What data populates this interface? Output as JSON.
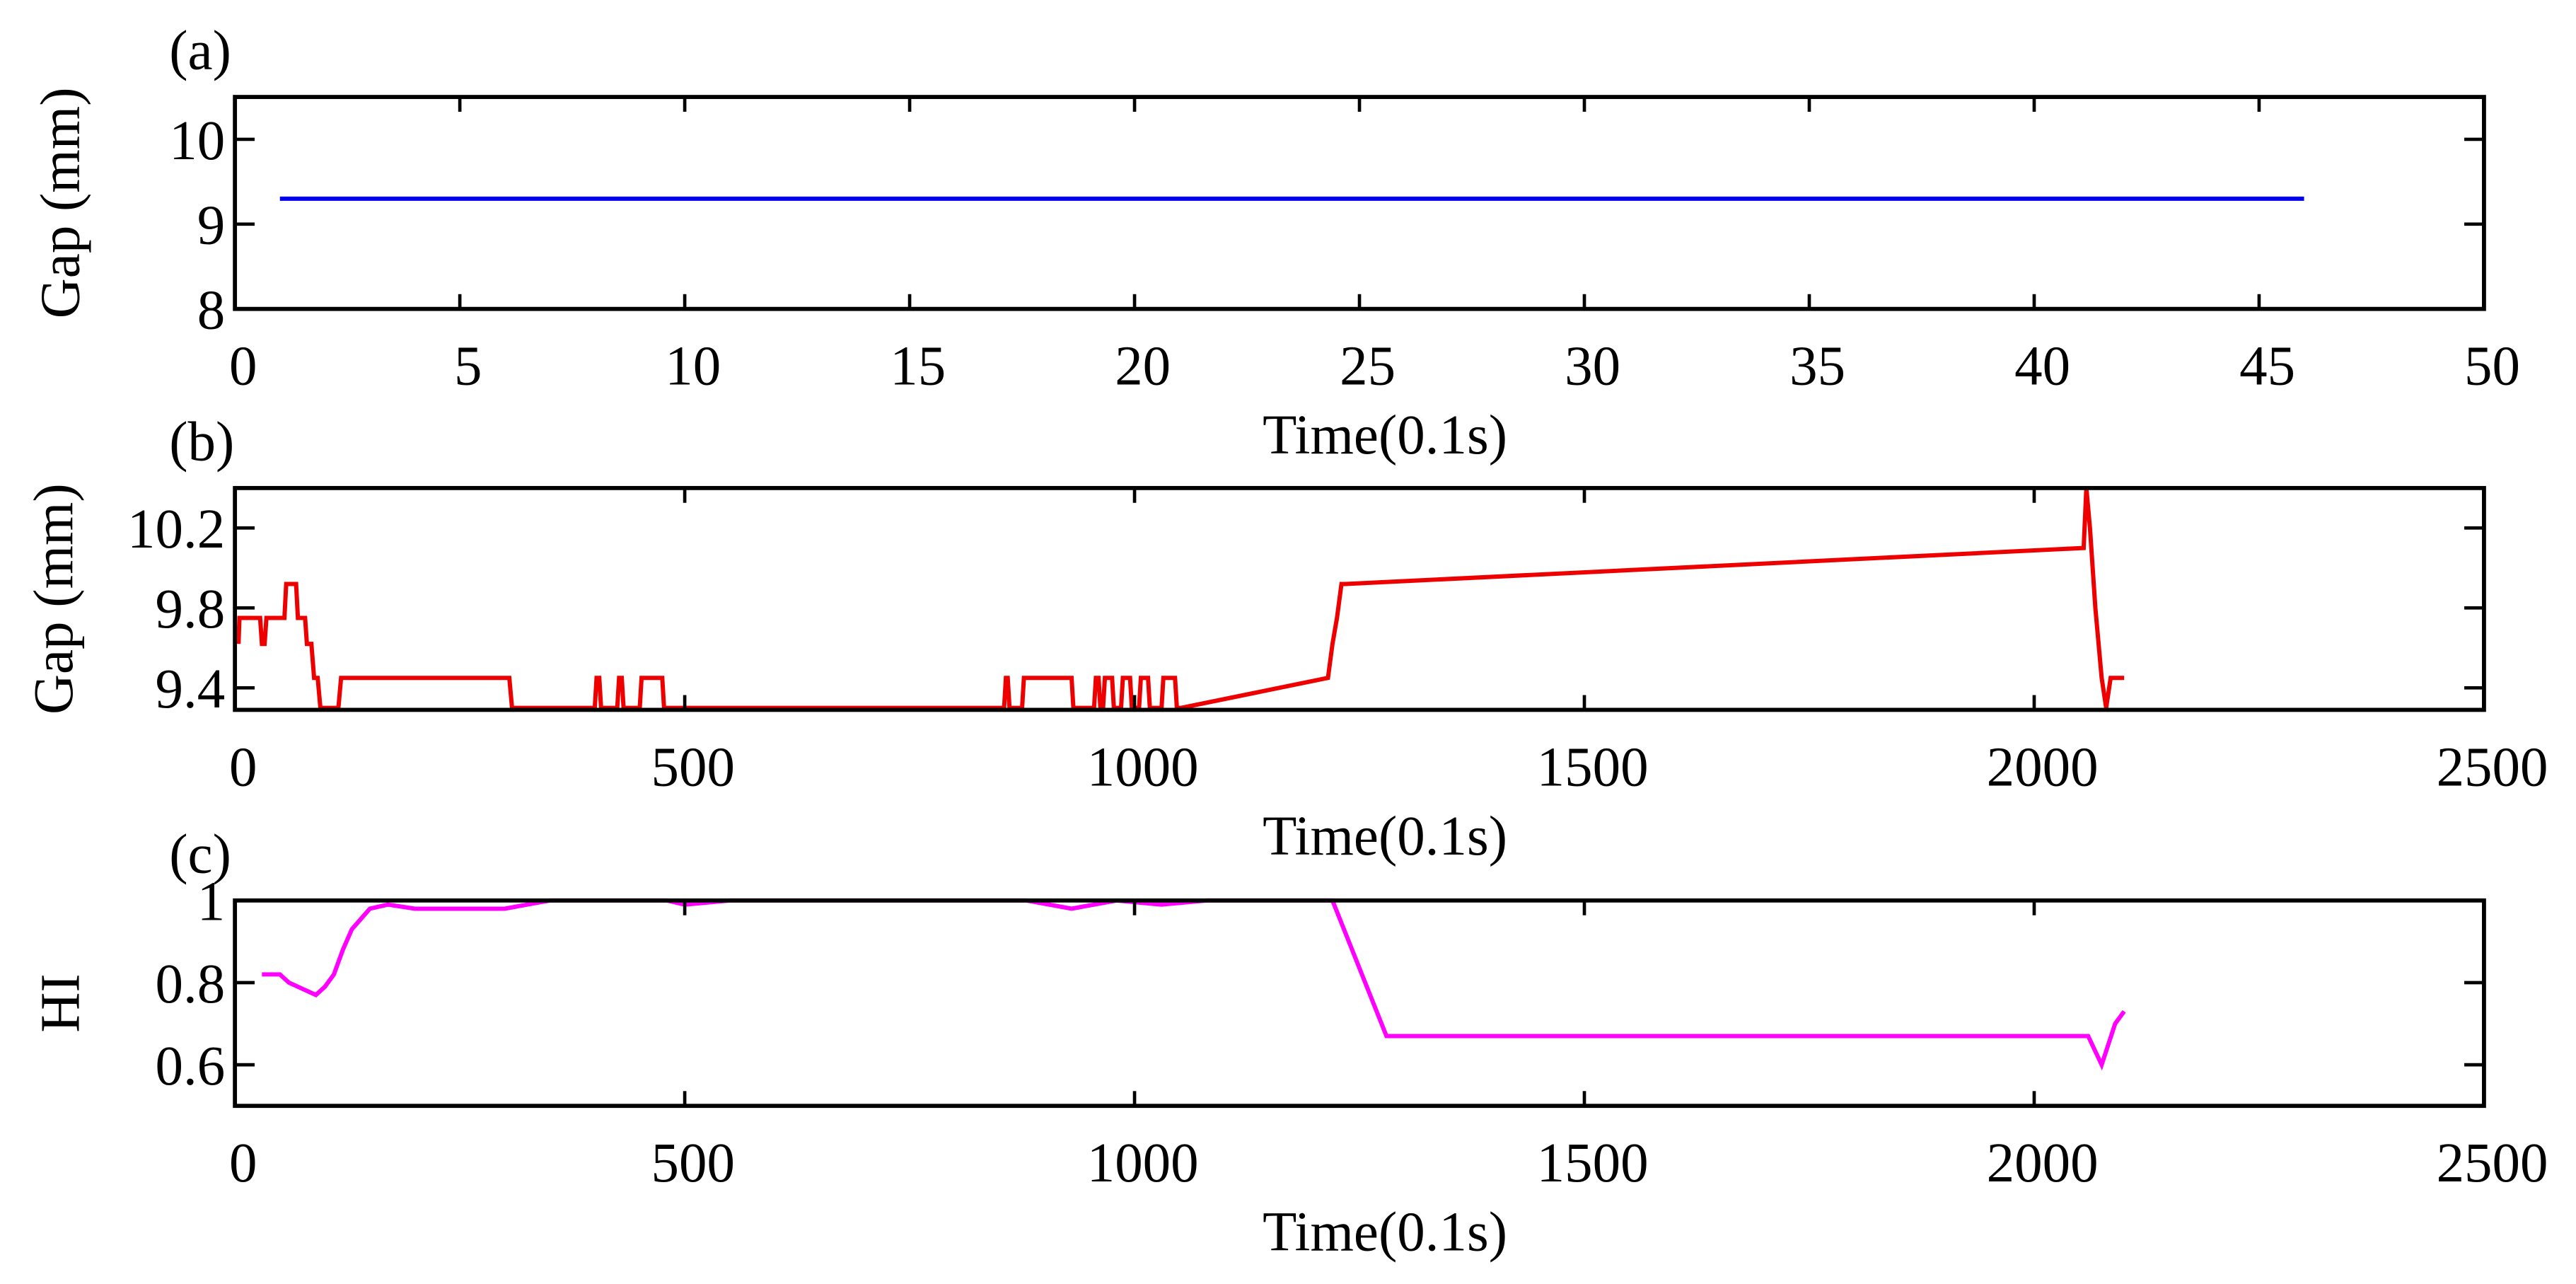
{
  "chart_data": [
    {
      "type": "line",
      "title": "(a)",
      "x_label": "Time(0.1s)",
      "y_label": "Gap (mm)",
      "xlim": [
        0,
        50
      ],
      "xticks": [
        0,
        5,
        10,
        15,
        20,
        25,
        30,
        35,
        40,
        45,
        50
      ],
      "ylim": [
        8,
        10.5
      ],
      "yticks": [
        8,
        9,
        10
      ],
      "series": [
        {
          "color": "#0000ee",
          "x": [
            1,
            46
          ],
          "values": [
            9.3,
            9.3
          ]
        }
      ]
    },
    {
      "type": "line",
      "title": "(b)",
      "x_label": "Time(0.1s)",
      "y_label": "Gap (mm)",
      "xlim": [
        0,
        2500
      ],
      "xticks": [
        0,
        500,
        1000,
        1500,
        2000,
        2500
      ],
      "ylim": [
        9.29,
        10.4
      ],
      "yticks": [
        9.4,
        9.8,
        10.2
      ],
      "series": [
        {
          "color": "#ee0000",
          "x": [
            4,
            5,
            28,
            30,
            33,
            35,
            55,
            57,
            68,
            70,
            78,
            80,
            85,
            88,
            92,
            95,
            115,
            118,
            305,
            308,
            400,
            402,
            405,
            407,
            425,
            427,
            430,
            432,
            450,
            452,
            475,
            477,
            855,
            857,
            859,
            861,
            875,
            877,
            930,
            932,
            955,
            957,
            960,
            962,
            965,
            967,
            975,
            977,
            985,
            987,
            995,
            997,
            1005,
            1007,
            1015,
            1017,
            1030,
            1032,
            1045,
            1047,
            1050,
            1052,
            1215,
            1220,
            1225,
            1230,
            1235,
            2055,
            2058,
            2062,
            2068,
            2075,
            2080,
            2085,
            2088,
            2100
          ],
          "values": [
            9.62,
            9.75,
            9.75,
            9.62,
            9.62,
            9.75,
            9.75,
            9.92,
            9.92,
            9.75,
            9.75,
            9.62,
            9.62,
            9.45,
            9.45,
            9.3,
            9.3,
            9.45,
            9.45,
            9.3,
            9.3,
            9.45,
            9.45,
            9.3,
            9.3,
            9.45,
            9.45,
            9.3,
            9.3,
            9.45,
            9.45,
            9.3,
            9.3,
            9.45,
            9.45,
            9.3,
            9.3,
            9.45,
            9.45,
            9.3,
            9.3,
            9.45,
            9.45,
            9.3,
            9.3,
            9.45,
            9.45,
            9.3,
            9.3,
            9.45,
            9.45,
            9.3,
            9.3,
            9.45,
            9.45,
            9.3,
            9.3,
            9.45,
            9.45,
            9.3,
            9.3,
            9.3,
            9.45,
            9.62,
            9.75,
            9.92,
            9.92,
            10.1,
            10.4,
            10.2,
            9.8,
            9.45,
            9.3,
            9.45,
            9.45,
            9.45
          ]
        }
      ]
    },
    {
      "type": "line",
      "title": "(c)",
      "x_label": "Time(0.1s)",
      "y_label": "HI",
      "xlim": [
        0,
        2500
      ],
      "xticks": [
        0,
        500,
        1000,
        1500,
        2000,
        2500
      ],
      "ylim": [
        0.5,
        1
      ],
      "yticks": [
        0.6,
        0.8,
        1
      ],
      "series": [
        {
          "color": "#ff00ff",
          "x": [
            30,
            50,
            60,
            80,
            90,
            100,
            110,
            120,
            130,
            150,
            170,
            200,
            300,
            350,
            480,
            500,
            550,
            880,
            930,
            980,
            1030,
            1080,
            1220,
            1280,
            2060,
            2075,
            2090,
            2100
          ],
          "values": [
            0.82,
            0.82,
            0.8,
            0.78,
            0.77,
            0.79,
            0.82,
            0.88,
            0.93,
            0.98,
            0.99,
            0.98,
            0.98,
            1.0,
            1.0,
            0.99,
            1.0,
            1.0,
            0.98,
            1.0,
            0.99,
            1.0,
            1.0,
            0.67,
            0.67,
            0.6,
            0.7,
            0.73
          ]
        }
      ]
    }
  ]
}
